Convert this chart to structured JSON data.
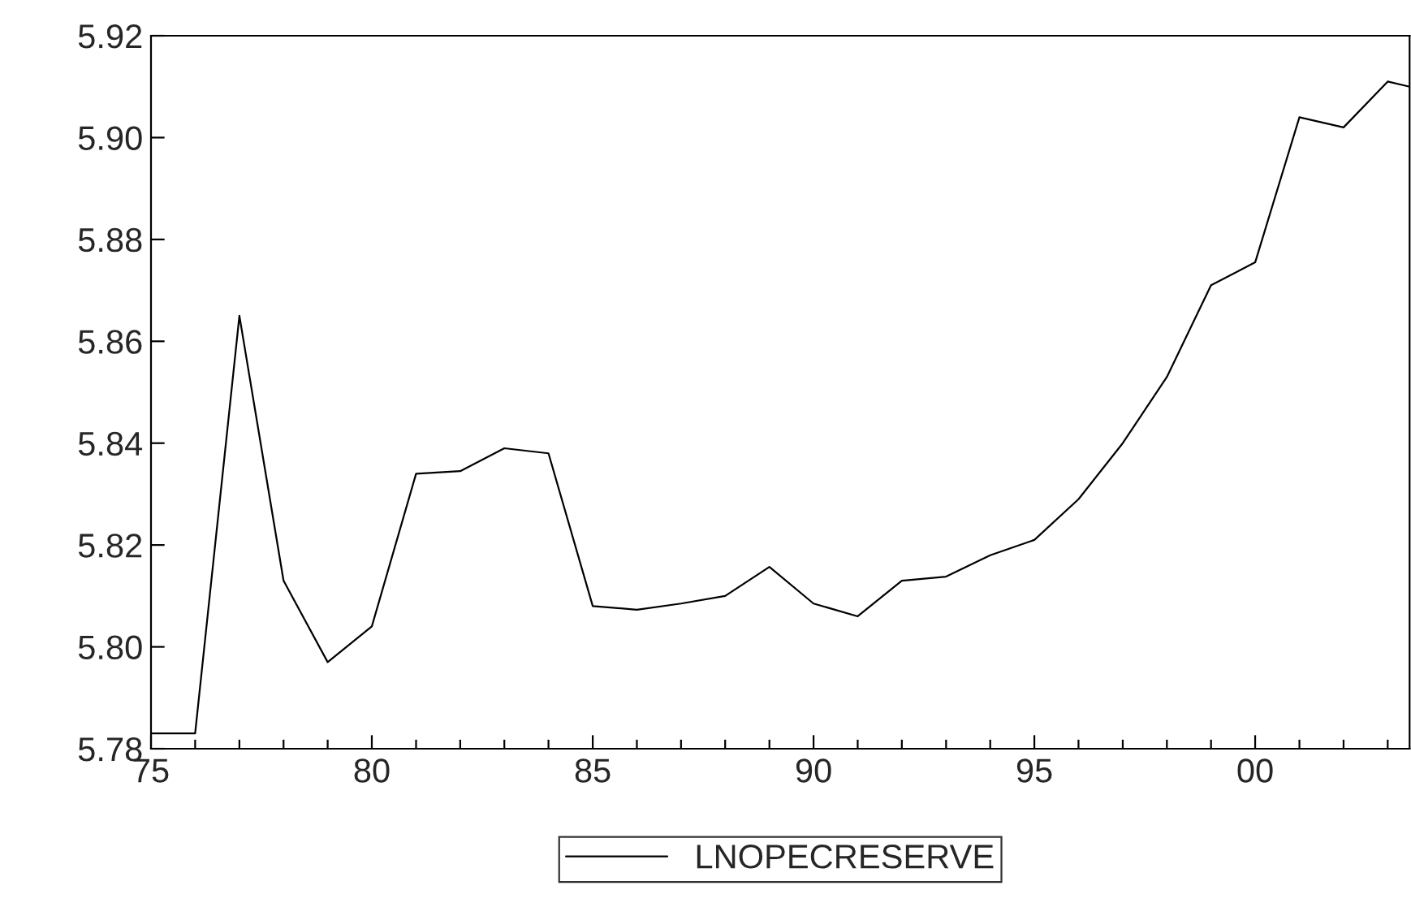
{
  "chart_data": {
    "type": "line",
    "x": [
      "1975",
      "1976",
      "1977",
      "1978",
      "1979",
      "1980",
      "1981",
      "1982",
      "1983",
      "1984",
      "1985",
      "1986",
      "1987",
      "1988",
      "1989",
      "1990",
      "1991",
      "1992",
      "1993",
      "1994",
      "1995",
      "1996",
      "1997",
      "1998",
      "1999",
      "2000",
      "2001",
      "2002",
      "2003",
      "2003-07"
    ],
    "series": [
      {
        "name": "LNOPECRESERVE",
        "color": "#000000",
        "values": [
          5.783,
          5.783,
          5.865,
          5.813,
          5.797,
          5.804,
          5.834,
          5.8345,
          5.839,
          5.838,
          5.808,
          5.8073,
          5.8085,
          5.81,
          5.8157,
          5.8085,
          5.806,
          5.813,
          5.8138,
          5.818,
          5.821,
          5.829,
          5.84,
          5.853,
          5.871,
          5.8755,
          5.904,
          5.902,
          5.911,
          5.91
        ]
      }
    ],
    "xlim": [
      "1975",
      "2003-07"
    ],
    "xticks": [
      {
        "value": "1975",
        "label": "75"
      },
      {
        "value": "1980",
        "label": "80"
      },
      {
        "value": "1985",
        "label": "85"
      },
      {
        "value": "1990",
        "label": "90"
      },
      {
        "value": "1995",
        "label": "95"
      },
      {
        "value": "2000",
        "label": "00"
      }
    ],
    "ylim": [
      5.78,
      5.92
    ],
    "yticks": [
      {
        "value": 5.78,
        "label": "5.78"
      },
      {
        "value": 5.8,
        "label": "5.80"
      },
      {
        "value": 5.82,
        "label": "5.82"
      },
      {
        "value": 5.84,
        "label": "5.84"
      },
      {
        "value": 5.86,
        "label": "5.86"
      },
      {
        "value": 5.88,
        "label": "5.88"
      },
      {
        "value": 5.9,
        "label": "5.90"
      },
      {
        "value": 5.92,
        "label": "5.92"
      }
    ],
    "legend": "bottom",
    "line_style": "solid",
    "grid": false
  }
}
